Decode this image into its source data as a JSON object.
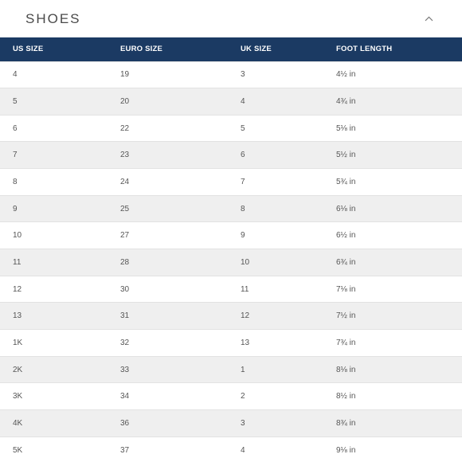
{
  "section": {
    "title": "SHOES",
    "toggle_icon": "chevron-up-icon"
  },
  "colors": {
    "header_bg": "#1b3a63",
    "stripe_bg": "#efefef",
    "text": "#555555"
  },
  "table": {
    "columns": [
      "US SIZE",
      "EURO SIZE",
      "UK SIZE",
      "FOOT LENGTH"
    ],
    "rows": [
      [
        "4",
        "19",
        "3",
        "4½ in"
      ],
      [
        "5",
        "20",
        "4",
        "4¾ in"
      ],
      [
        "6",
        "22",
        "5",
        "5⅛ in"
      ],
      [
        "7",
        "23",
        "6",
        "5½ in"
      ],
      [
        "8",
        "24",
        "7",
        "5¾ in"
      ],
      [
        "9",
        "25",
        "8",
        "6⅛ in"
      ],
      [
        "10",
        "27",
        "9",
        "6½ in"
      ],
      [
        "11",
        "28",
        "10",
        "6¾ in"
      ],
      [
        "12",
        "30",
        "11",
        "7⅛ in"
      ],
      [
        "13",
        "31",
        "12",
        "7½ in"
      ],
      [
        "1K",
        "32",
        "13",
        "7¾ in"
      ],
      [
        "2K",
        "33",
        "1",
        "8⅛ in"
      ],
      [
        "3K",
        "34",
        "2",
        "8½ in"
      ],
      [
        "4K",
        "36",
        "3",
        "8¾ in"
      ],
      [
        "5K",
        "37",
        "4",
        "9⅛ in"
      ]
    ]
  }
}
